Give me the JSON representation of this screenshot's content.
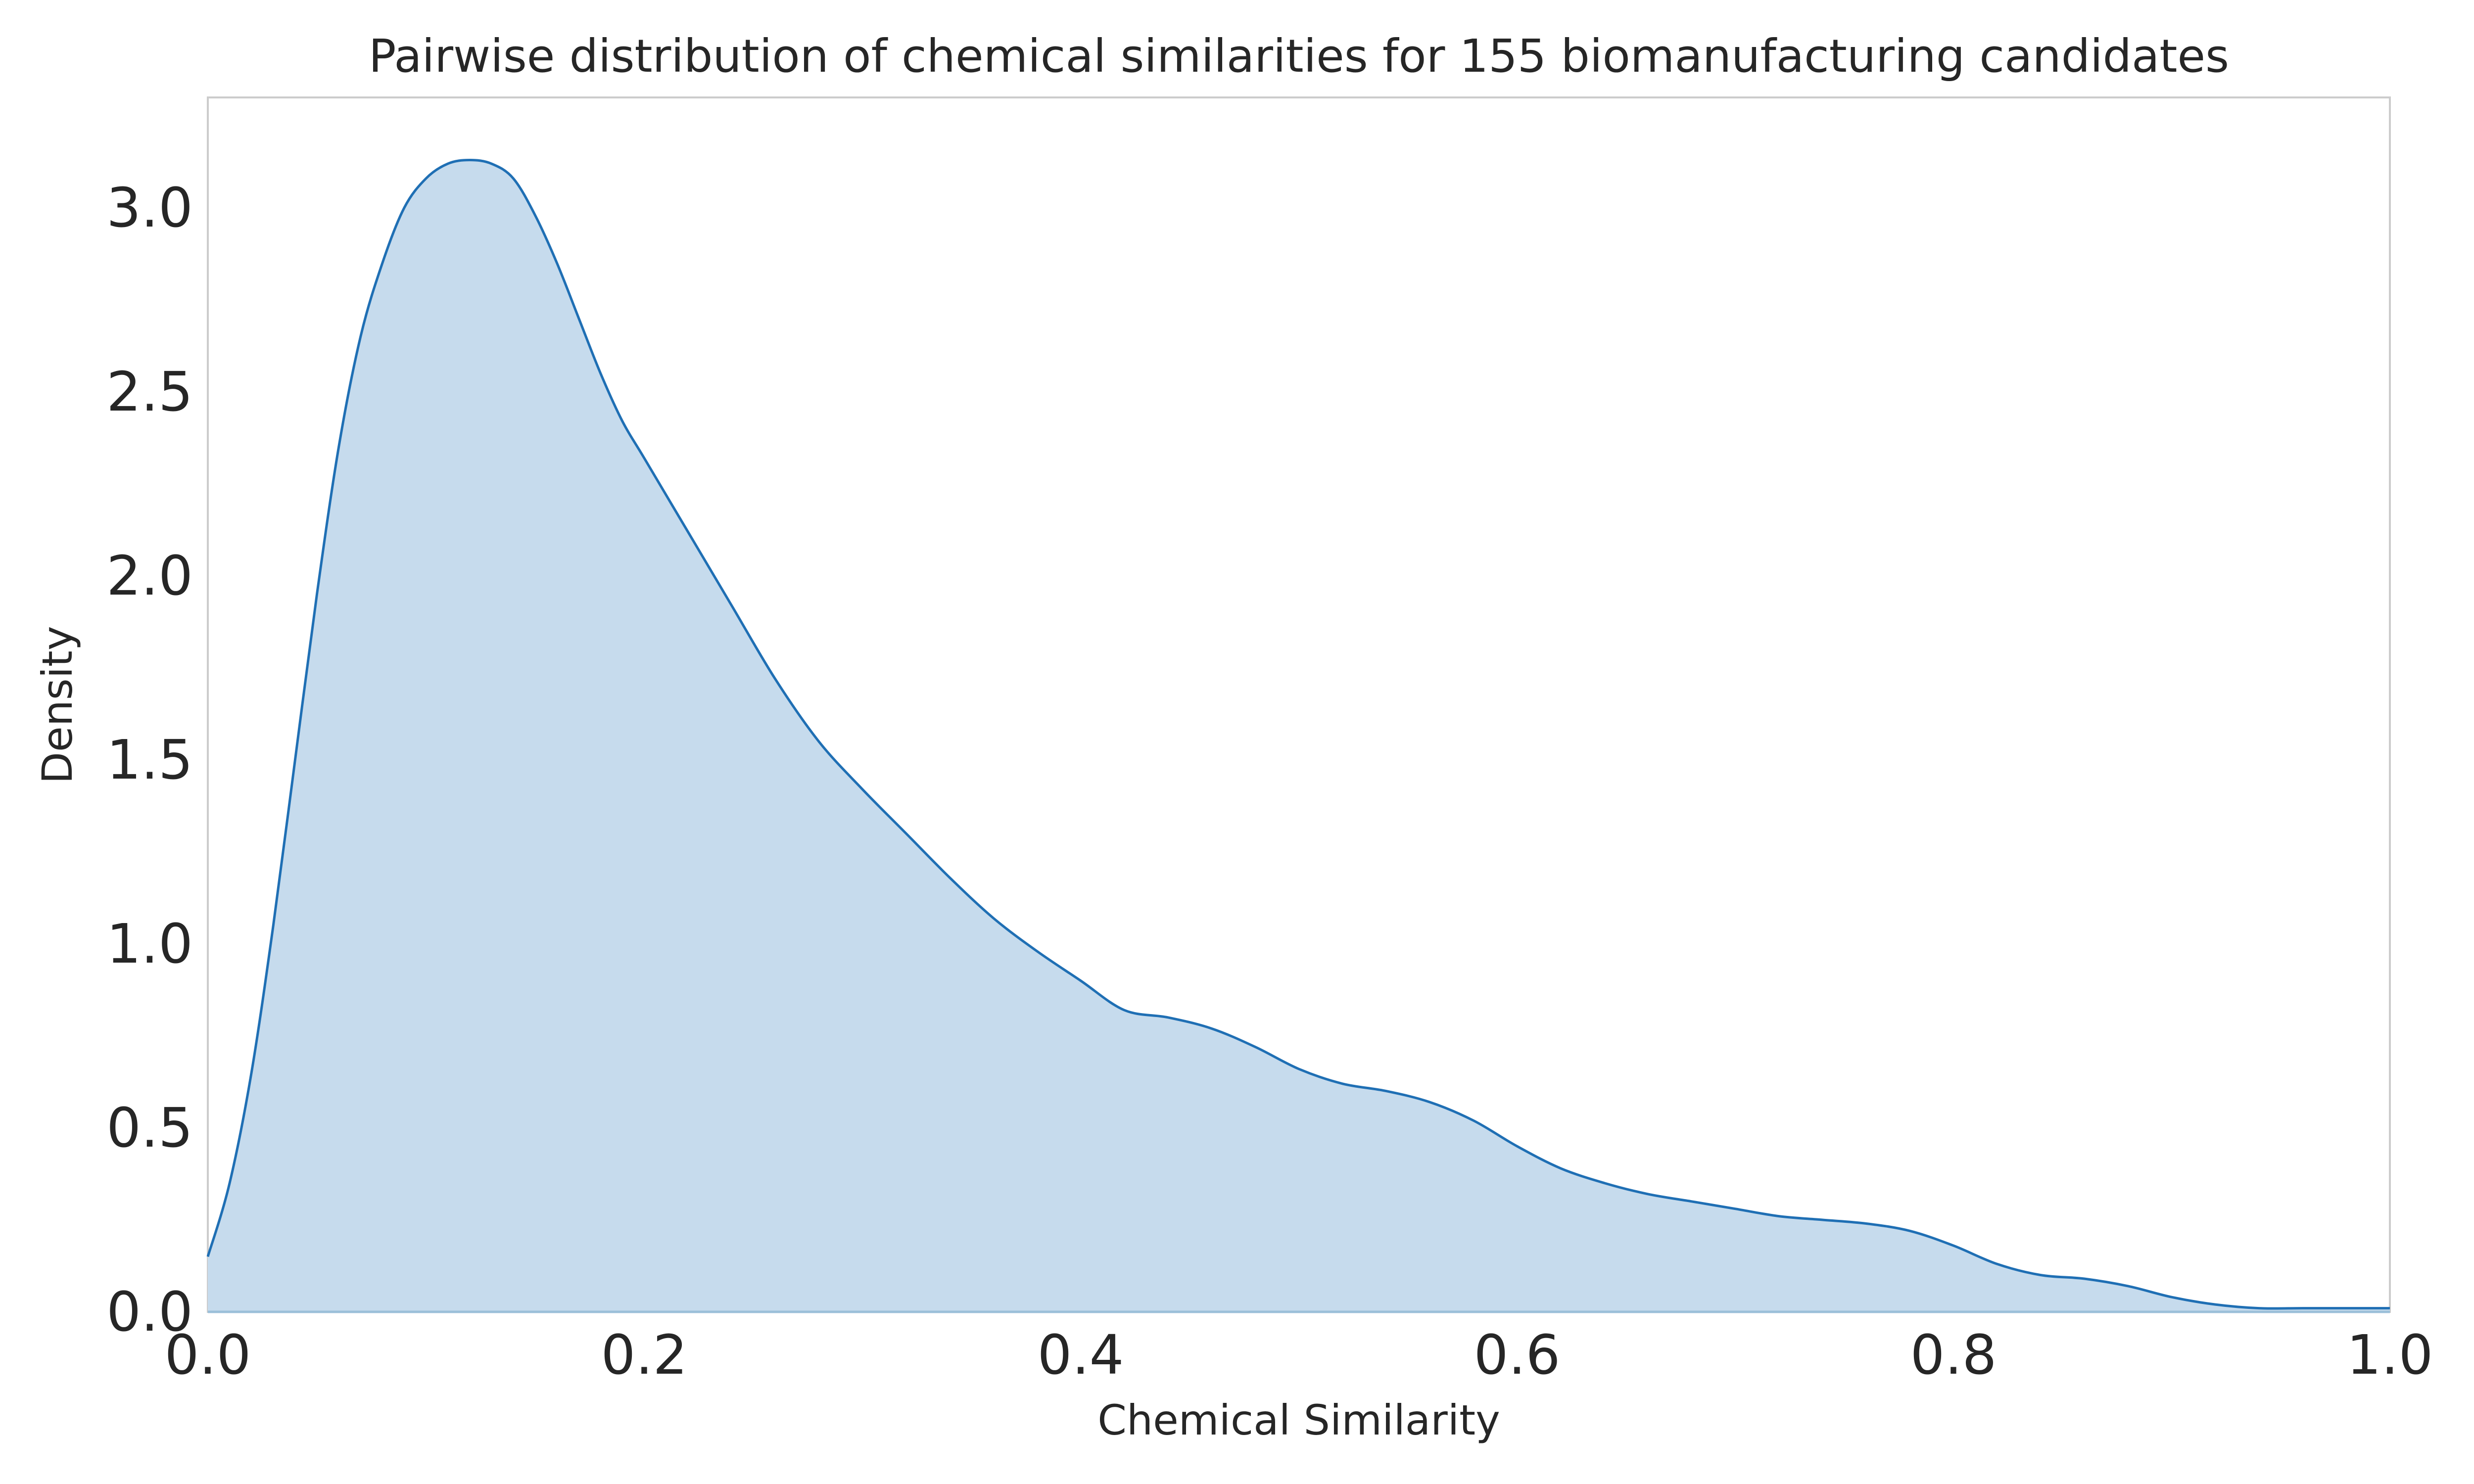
{
  "chart_data": {
    "type": "area",
    "title": "Pairwise distribution of chemical similarities for 155 biomanufacturing candidates",
    "xlabel": "Chemical Similarity",
    "ylabel": "Density",
    "xlim": [
      0,
      1
    ],
    "ylim": [
      0,
      3.3
    ],
    "xticks": [
      0.0,
      0.2,
      0.4,
      0.6,
      0.8,
      1.0
    ],
    "xtick_labels": [
      "0.0",
      "0.2",
      "0.4",
      "0.6",
      "0.8",
      "1.0"
    ],
    "yticks": [
      0.0,
      0.5,
      1.0,
      1.5,
      2.0,
      2.5,
      3.0
    ],
    "ytick_labels": [
      "0.0",
      "0.5",
      "1.0",
      "1.5",
      "2.0",
      "2.5",
      "3.0"
    ],
    "grid": false,
    "colors": {
      "line": "#1f6fb4",
      "fill": "#c6dbed",
      "spine": "#cccccc",
      "text": "#262626"
    },
    "x": [
      0.0,
      0.01,
      0.02,
      0.03,
      0.04,
      0.05,
      0.06,
      0.07,
      0.08,
      0.09,
      0.1,
      0.11,
      0.12,
      0.13,
      0.14,
      0.15,
      0.16,
      0.17,
      0.18,
      0.19,
      0.2,
      0.22,
      0.24,
      0.26,
      0.28,
      0.3,
      0.32,
      0.34,
      0.36,
      0.38,
      0.4,
      0.42,
      0.44,
      0.46,
      0.48,
      0.5,
      0.52,
      0.54,
      0.56,
      0.58,
      0.6,
      0.62,
      0.64,
      0.66,
      0.68,
      0.7,
      0.72,
      0.74,
      0.76,
      0.78,
      0.8,
      0.82,
      0.84,
      0.86,
      0.88,
      0.9,
      0.92,
      0.94,
      0.96,
      0.98,
      1.0
    ],
    "y": [
      0.15,
      0.35,
      0.65,
      1.05,
      1.5,
      1.95,
      2.35,
      2.65,
      2.85,
      3.0,
      3.08,
      3.12,
      3.13,
      3.12,
      3.08,
      2.98,
      2.85,
      2.7,
      2.55,
      2.42,
      2.32,
      2.12,
      1.92,
      1.72,
      1.55,
      1.42,
      1.3,
      1.18,
      1.07,
      0.98,
      0.9,
      0.82,
      0.8,
      0.77,
      0.72,
      0.66,
      0.62,
      0.6,
      0.57,
      0.52,
      0.45,
      0.39,
      0.35,
      0.32,
      0.3,
      0.28,
      0.26,
      0.25,
      0.24,
      0.22,
      0.18,
      0.13,
      0.1,
      0.09,
      0.07,
      0.04,
      0.02,
      0.01,
      0.01,
      0.01,
      0.01
    ]
  }
}
